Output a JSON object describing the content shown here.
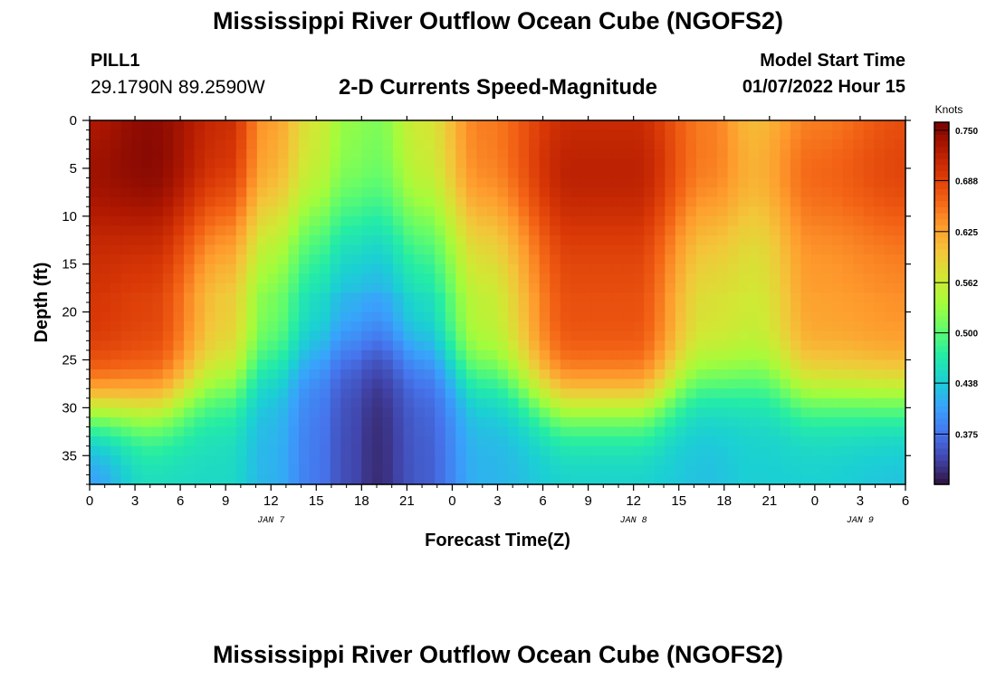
{
  "header": {
    "title": "Mississippi River Outflow Ocean Cube (NGOFS2)",
    "station_id": "PILL1",
    "station_coords": "29.1790N  89.2590W",
    "plot_title": "2-D Currents Speed-Magnitude",
    "model_start_label": "Model Start Time",
    "model_start_value": "01/07/2022 Hour 15"
  },
  "footer": {
    "title": "Mississippi River Outflow Ocean Cube (NGOFS2)"
  },
  "chart_data": {
    "type": "heatmap",
    "xlabel": "Forecast Time(Z)",
    "ylabel": "Depth (ft)",
    "x_tick_labels": [
      "0",
      "3",
      "6",
      "9",
      "12",
      "15",
      "18",
      "21",
      "0",
      "3",
      "6",
      "9",
      "12",
      "15",
      "18",
      "21",
      "0",
      "3",
      "6"
    ],
    "x_range_hours": [
      0,
      54
    ],
    "date_labels": [
      {
        "label": "JAN 7",
        "hour": 12
      },
      {
        "label": "JAN 8",
        "hour": 36
      },
      {
        "label": "JAN 9",
        "hour": 51
      }
    ],
    "y_ticks": [
      0,
      5,
      10,
      15,
      20,
      25,
      30,
      35
    ],
    "y_range": [
      0,
      38
    ],
    "y_inverted": true,
    "colorbar": {
      "label": "Knots",
      "ticks": [
        "0.750",
        "0.688",
        "0.625",
        "0.562",
        "0.500",
        "0.438",
        "0.375"
      ],
      "tick_values": [
        0.75,
        0.688,
        0.625,
        0.562,
        0.5,
        0.438,
        0.375
      ],
      "range": [
        0.313,
        0.76
      ],
      "colors": [
        "#30123b",
        "#4145ab",
        "#4675ed",
        "#39a2fc",
        "#1bcfd4",
        "#24eca6",
        "#61fc6c",
        "#a4fc3b",
        "#d1e834",
        "#f3c63a",
        "#fe9b2d",
        "#f36315",
        "#d93806",
        "#b11901",
        "#7a0402"
      ]
    },
    "series": [
      {
        "hour": 0,
        "surface": 0.72,
        "mid": 0.7,
        "bottom": 0.4
      },
      {
        "hour": 4,
        "surface": 0.74,
        "mid": 0.69,
        "bottom": 0.45
      },
      {
        "hour": 9,
        "surface": 0.7,
        "mid": 0.6,
        "bottom": 0.45
      },
      {
        "hour": 12,
        "surface": 0.62,
        "mid": 0.52,
        "bottom": 0.42
      },
      {
        "hour": 15,
        "surface": 0.56,
        "mid": 0.46,
        "bottom": 0.38
      },
      {
        "hour": 17,
        "surface": 0.52,
        "mid": 0.43,
        "bottom": 0.35
      },
      {
        "hour": 19,
        "surface": 0.51,
        "mid": 0.42,
        "bottom": 0.33
      },
      {
        "hour": 22,
        "surface": 0.56,
        "mid": 0.46,
        "bottom": 0.36
      },
      {
        "hour": 26,
        "surface": 0.64,
        "mid": 0.56,
        "bottom": 0.42
      },
      {
        "hour": 32,
        "surface": 0.7,
        "mid": 0.68,
        "bottom": 0.44
      },
      {
        "hour": 36,
        "surface": 0.7,
        "mid": 0.68,
        "bottom": 0.44
      },
      {
        "hour": 41,
        "surface": 0.64,
        "mid": 0.58,
        "bottom": 0.43
      },
      {
        "hour": 44,
        "surface": 0.6,
        "mid": 0.57,
        "bottom": 0.44
      },
      {
        "hour": 48,
        "surface": 0.64,
        "mid": 0.63,
        "bottom": 0.44
      },
      {
        "hour": 54,
        "surface": 0.67,
        "mid": 0.64,
        "bottom": 0.43
      }
    ]
  }
}
